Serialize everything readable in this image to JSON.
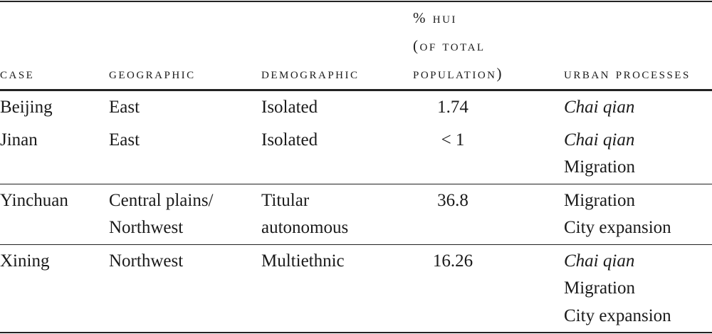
{
  "table": {
    "header": [
      [
        "case"
      ],
      [
        "geographic"
      ],
      [
        "demographic"
      ],
      [
        "% hui",
        "(of total",
        "population)"
      ],
      [
        "urban processes"
      ]
    ],
    "rows": [
      [
        [
          "Beijing"
        ],
        [
          "East"
        ],
        [
          "Isolated"
        ],
        [
          "1.74"
        ],
        [
          {
            "text": "Chai qian",
            "italic": true
          }
        ]
      ],
      [
        [
          "Jinan"
        ],
        [
          "East"
        ],
        [
          "Isolated"
        ],
        [
          "< 1"
        ],
        [
          {
            "text": "Chai qian",
            "italic": true
          },
          "Migration"
        ]
      ],
      [
        [
          "Yinchuan"
        ],
        [
          "Central plains/",
          "Northwest"
        ],
        [
          "Titular",
          "autonomous"
        ],
        [
          "36.8"
        ],
        [
          "Migration",
          "City expansion"
        ]
      ],
      [
        [
          "Xining"
        ],
        [
          "Northwest"
        ],
        [
          "Multiethnic"
        ],
        [
          "16.26"
        ],
        [
          {
            "text": "Chai qian",
            "italic": true
          },
          "Migration",
          "City expansion"
        ]
      ]
    ],
    "row_rules_after": [
      1,
      2
    ]
  }
}
